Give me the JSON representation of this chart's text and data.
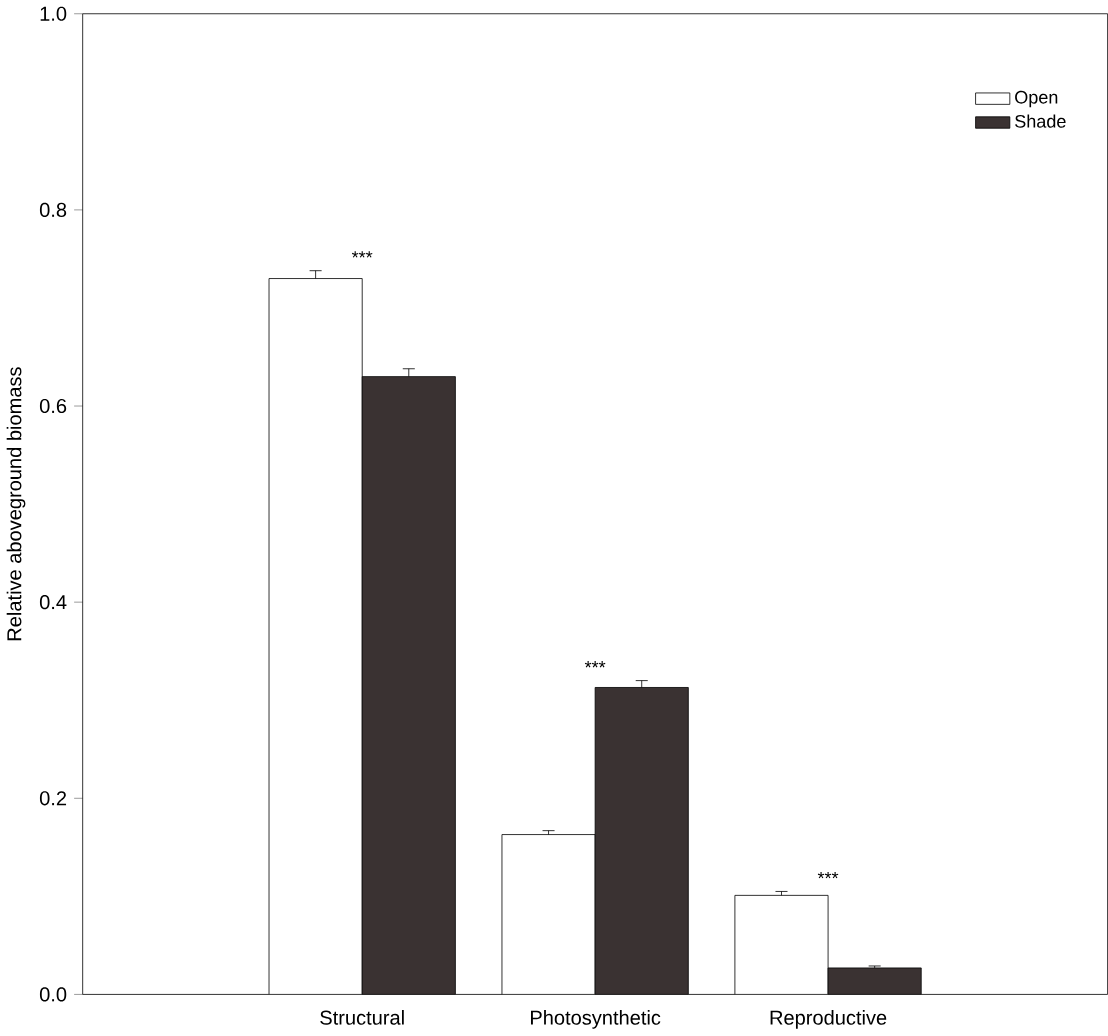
{
  "chart_data": {
    "type": "bar",
    "ylabel": "Relative aboveground biomass",
    "categories": [
      "Structural",
      "Photosynthetic",
      "Reproductive"
    ],
    "series": [
      {
        "name": "Open",
        "color": "#ffffff",
        "values": [
          0.73,
          0.163,
          0.101
        ],
        "errors": [
          0.008,
          0.004,
          0.004
        ]
      },
      {
        "name": "Shade",
        "color": "#3a3232",
        "values": [
          0.63,
          0.313,
          0.027
        ],
        "errors": [
          0.008,
          0.007,
          0.002
        ]
      }
    ],
    "ylim": [
      0,
      1.0
    ],
    "yticks": [
      {
        "value": 0,
        "label": "0.0"
      },
      {
        "value": 0.2,
        "label": "0.2"
      },
      {
        "value": 0.4,
        "label": "0.4"
      },
      {
        "value": 0.6,
        "label": "0.6"
      },
      {
        "value": 0.8,
        "label": "0.8"
      },
      {
        "value": 1.0,
        "label": "1.0"
      }
    ],
    "annotations": [
      "***",
      "***",
      "***"
    ],
    "legend": "top right",
    "grid": false
  }
}
